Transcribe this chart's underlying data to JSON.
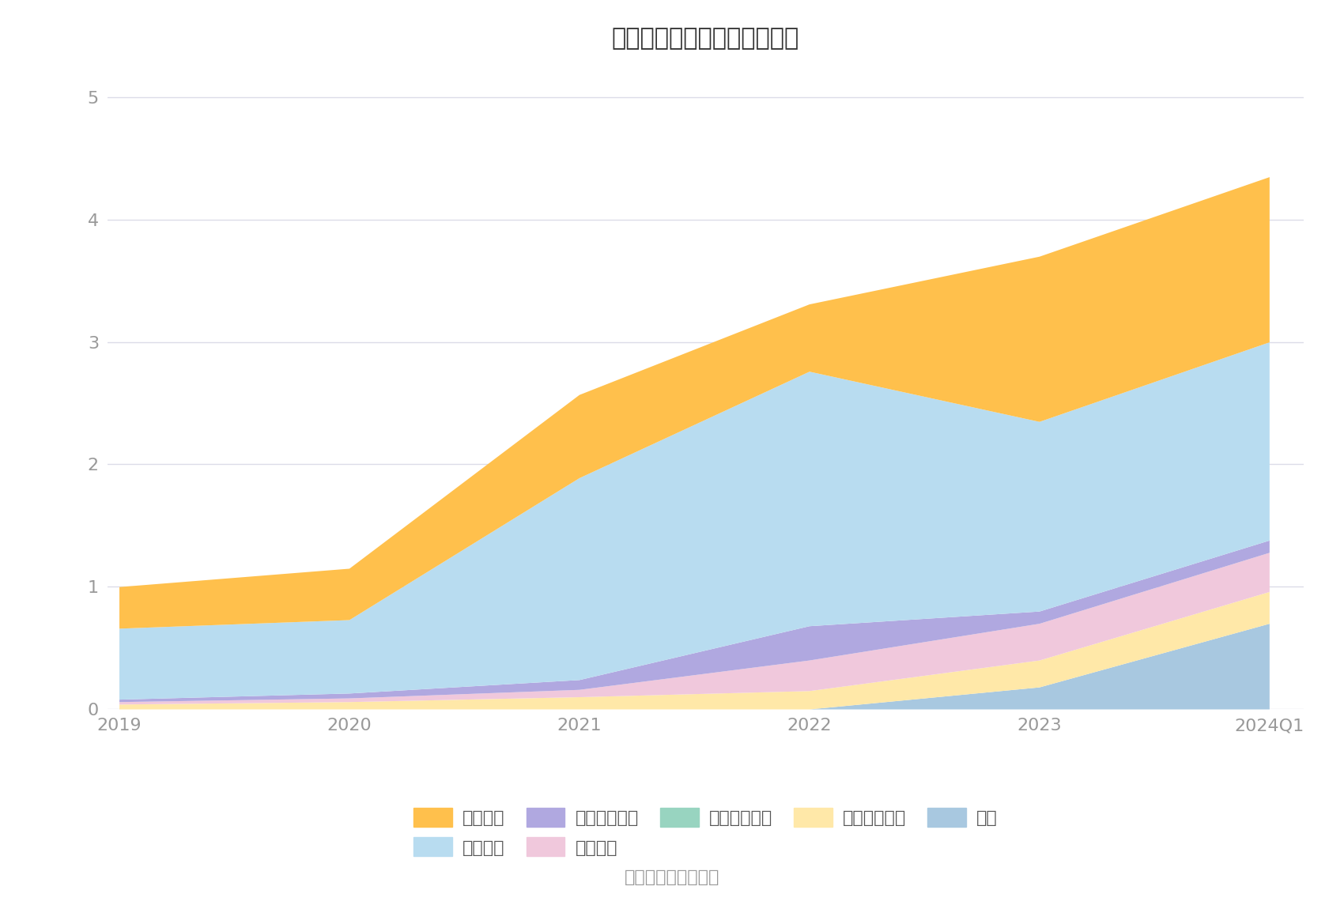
{
  "title": "历年主要负债堆积图（亿元）",
  "x_labels": [
    "2019",
    "2020",
    "2021",
    "2022",
    "2023",
    "2024Q1"
  ],
  "x_values": [
    0,
    1,
    2,
    3,
    4,
    5
  ],
  "series_bottom_to_top": [
    {
      "name": "其它",
      "color": "#A8C8E0",
      "values": [
        0.0,
        0.0,
        0.0,
        0.0,
        0.18,
        0.7
      ]
    },
    {
      "name": "长期递延收益",
      "color": "#FFE8A8",
      "values": [
        0.04,
        0.06,
        0.1,
        0.15,
        0.22,
        0.26
      ]
    },
    {
      "name": "应交税费",
      "color": "#F0C8DC",
      "values": [
        0.02,
        0.03,
        0.06,
        0.25,
        0.3,
        0.32
      ]
    },
    {
      "name": "应付职工薪酬",
      "color": "#B0A8E0",
      "values": [
        0.02,
        0.04,
        0.08,
        0.28,
        0.1,
        0.1
      ]
    },
    {
      "name": "合同负债",
      "color": "#B8DCF0",
      "values": [
        0.58,
        0.6,
        1.65,
        2.08,
        1.55,
        1.62
      ]
    },
    {
      "name": "应付账款",
      "color": "#FFC04C",
      "values": [
        0.34,
        0.42,
        0.68,
        0.55,
        1.35,
        1.35
      ]
    }
  ],
  "legend_entries": [
    {
      "name": "应付账款",
      "color": "#FFC04C"
    },
    {
      "name": "合同负债",
      "color": "#B8DCF0"
    },
    {
      "name": "应付职工薪酬",
      "color": "#B0A8E0"
    },
    {
      "name": "应交税费",
      "color": "#F0C8DC"
    },
    {
      "name": "其他流动负债",
      "color": "#98D4C0"
    },
    {
      "name": "长期递延收益",
      "color": "#FFE8A8"
    },
    {
      "name": "其它",
      "color": "#A8C8E0"
    }
  ],
  "ylim": [
    0,
    5.2
  ],
  "yticks": [
    0,
    1,
    2,
    3,
    4,
    5
  ],
  "source_text": "数据来源：恒生聚源",
  "background_color": "#FFFFFF",
  "grid_color": "#DCDCE8",
  "title_fontsize": 22,
  "tick_fontsize": 16,
  "legend_fontsize": 16,
  "source_fontsize": 16
}
